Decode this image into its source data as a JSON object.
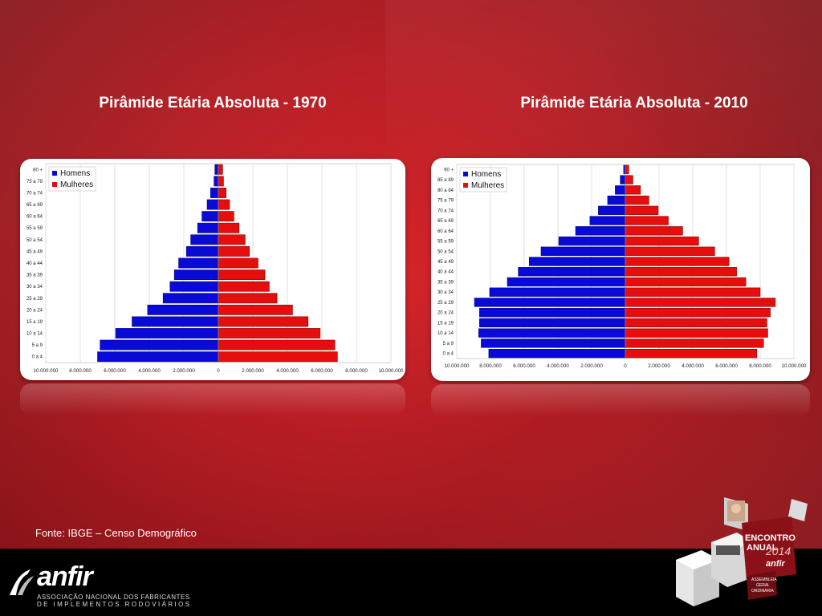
{
  "titles": {
    "left": "Pirâmide Etária Absoluta - 1970",
    "right": "Pirâmide Etária Absoluta - 2010"
  },
  "source": "Fonte: IBGE – Censo Demográfico",
  "colors": {
    "homens": "#0a0ad8",
    "mulheres": "#e60d0d"
  },
  "chart_data": [
    {
      "type": "bar",
      "orientation": "horizontal",
      "title": "Pirâmide Etária Absoluta - 1970",
      "categories": [
        "0 a 4",
        "5 a 9",
        "10 a 14",
        "15 a 19",
        "20 a 24",
        "25 a 29",
        "30 a 34",
        "35 a 39",
        "40 a 44",
        "45 a 49",
        "50 a 54",
        "55 a 59",
        "60 a 64",
        "65 a 69",
        "70 a 74",
        "75 a 79",
        "80 +"
      ],
      "series": [
        {
          "name": "Homens",
          "values": [
            7000000,
            6850000,
            5950000,
            5000000,
            4100000,
            3200000,
            2800000,
            2550000,
            2300000,
            1850000,
            1600000,
            1200000,
            950000,
            650000,
            450000,
            250000,
            200000
          ]
        },
        {
          "name": "Mulheres",
          "values": [
            6900000,
            6750000,
            5900000,
            5200000,
            4300000,
            3400000,
            2950000,
            2700000,
            2300000,
            1800000,
            1550000,
            1200000,
            900000,
            650000,
            450000,
            300000,
            250000
          ]
        }
      ],
      "xlim": [
        -10000000,
        10000000
      ],
      "xticks": [
        -10000000,
        -8000000,
        -6000000,
        -4000000,
        -2000000,
        0,
        2000000,
        4000000,
        6000000,
        8000000,
        10000000
      ],
      "xtick_labels": [
        "10.000.000",
        "8.000.000",
        "6.000.000",
        "4.000.000",
        "2.000.000",
        "0",
        "2.000.000",
        "4.000.000",
        "6.000.000",
        "8.000.000",
        "10.000.000"
      ],
      "grid": true,
      "legend": "top-left"
    },
    {
      "type": "bar",
      "orientation": "horizontal",
      "title": "Pirâmide Etária Absoluta - 2010",
      "categories": [
        "0 a 4",
        "5 a 9",
        "10 a 14",
        "15 a 19",
        "20 a 24",
        "25 a 29",
        "30 a 34",
        "35 a 39",
        "40 a 44",
        "45 a 49",
        "50 a 54",
        "55 a 59",
        "60 a 64",
        "65 a 69",
        "70 a 74",
        "75 a 79",
        "80 a 84",
        "85 a 89",
        "90 +"
      ],
      "series": [
        {
          "name": "Homens",
          "values": [
            8100000,
            8550000,
            8700000,
            8650000,
            8650000,
            8950000,
            8050000,
            7000000,
            6350000,
            5700000,
            5000000,
            3950000,
            2950000,
            2100000,
            1600000,
            1050000,
            600000,
            300000,
            100000
          ]
        },
        {
          "name": "Mulheres",
          "values": [
            7800000,
            8200000,
            8450000,
            8400000,
            8600000,
            8900000,
            8000000,
            7150000,
            6600000,
            6150000,
            5300000,
            4350000,
            3400000,
            2550000,
            1950000,
            1400000,
            900000,
            450000,
            200000
          ]
        }
      ],
      "xlim": [
        -10000000,
        10000000
      ],
      "xticks": [
        -10000000,
        -8000000,
        -6000000,
        -4000000,
        -2000000,
        0,
        2000000,
        4000000,
        6000000,
        8000000,
        10000000
      ],
      "xtick_labels": [
        "10.000.000",
        "8.000.000",
        "6.000.000",
        "4.000.000",
        "2.000.000",
        "0",
        "2.000.000",
        "4.000.000",
        "6.000.000",
        "8.000.000",
        "10.000.000"
      ],
      "grid": true,
      "legend": "top-left"
    }
  ],
  "logo": {
    "word": "anfir",
    "line1": "ASSOCIAÇÃO NACIONAL DOS FABRICANTES",
    "line2": "DE IMPLEMENTOS RODOVIÁRIOS"
  },
  "event_badge": {
    "line1": "ENCONTRO",
    "line2": "ANUAL",
    "year": "2014",
    "brand": "anfir",
    "line3": "ASSEMBLEIA",
    "line4": "GERAL",
    "line5": "ORDINÁRIA"
  }
}
